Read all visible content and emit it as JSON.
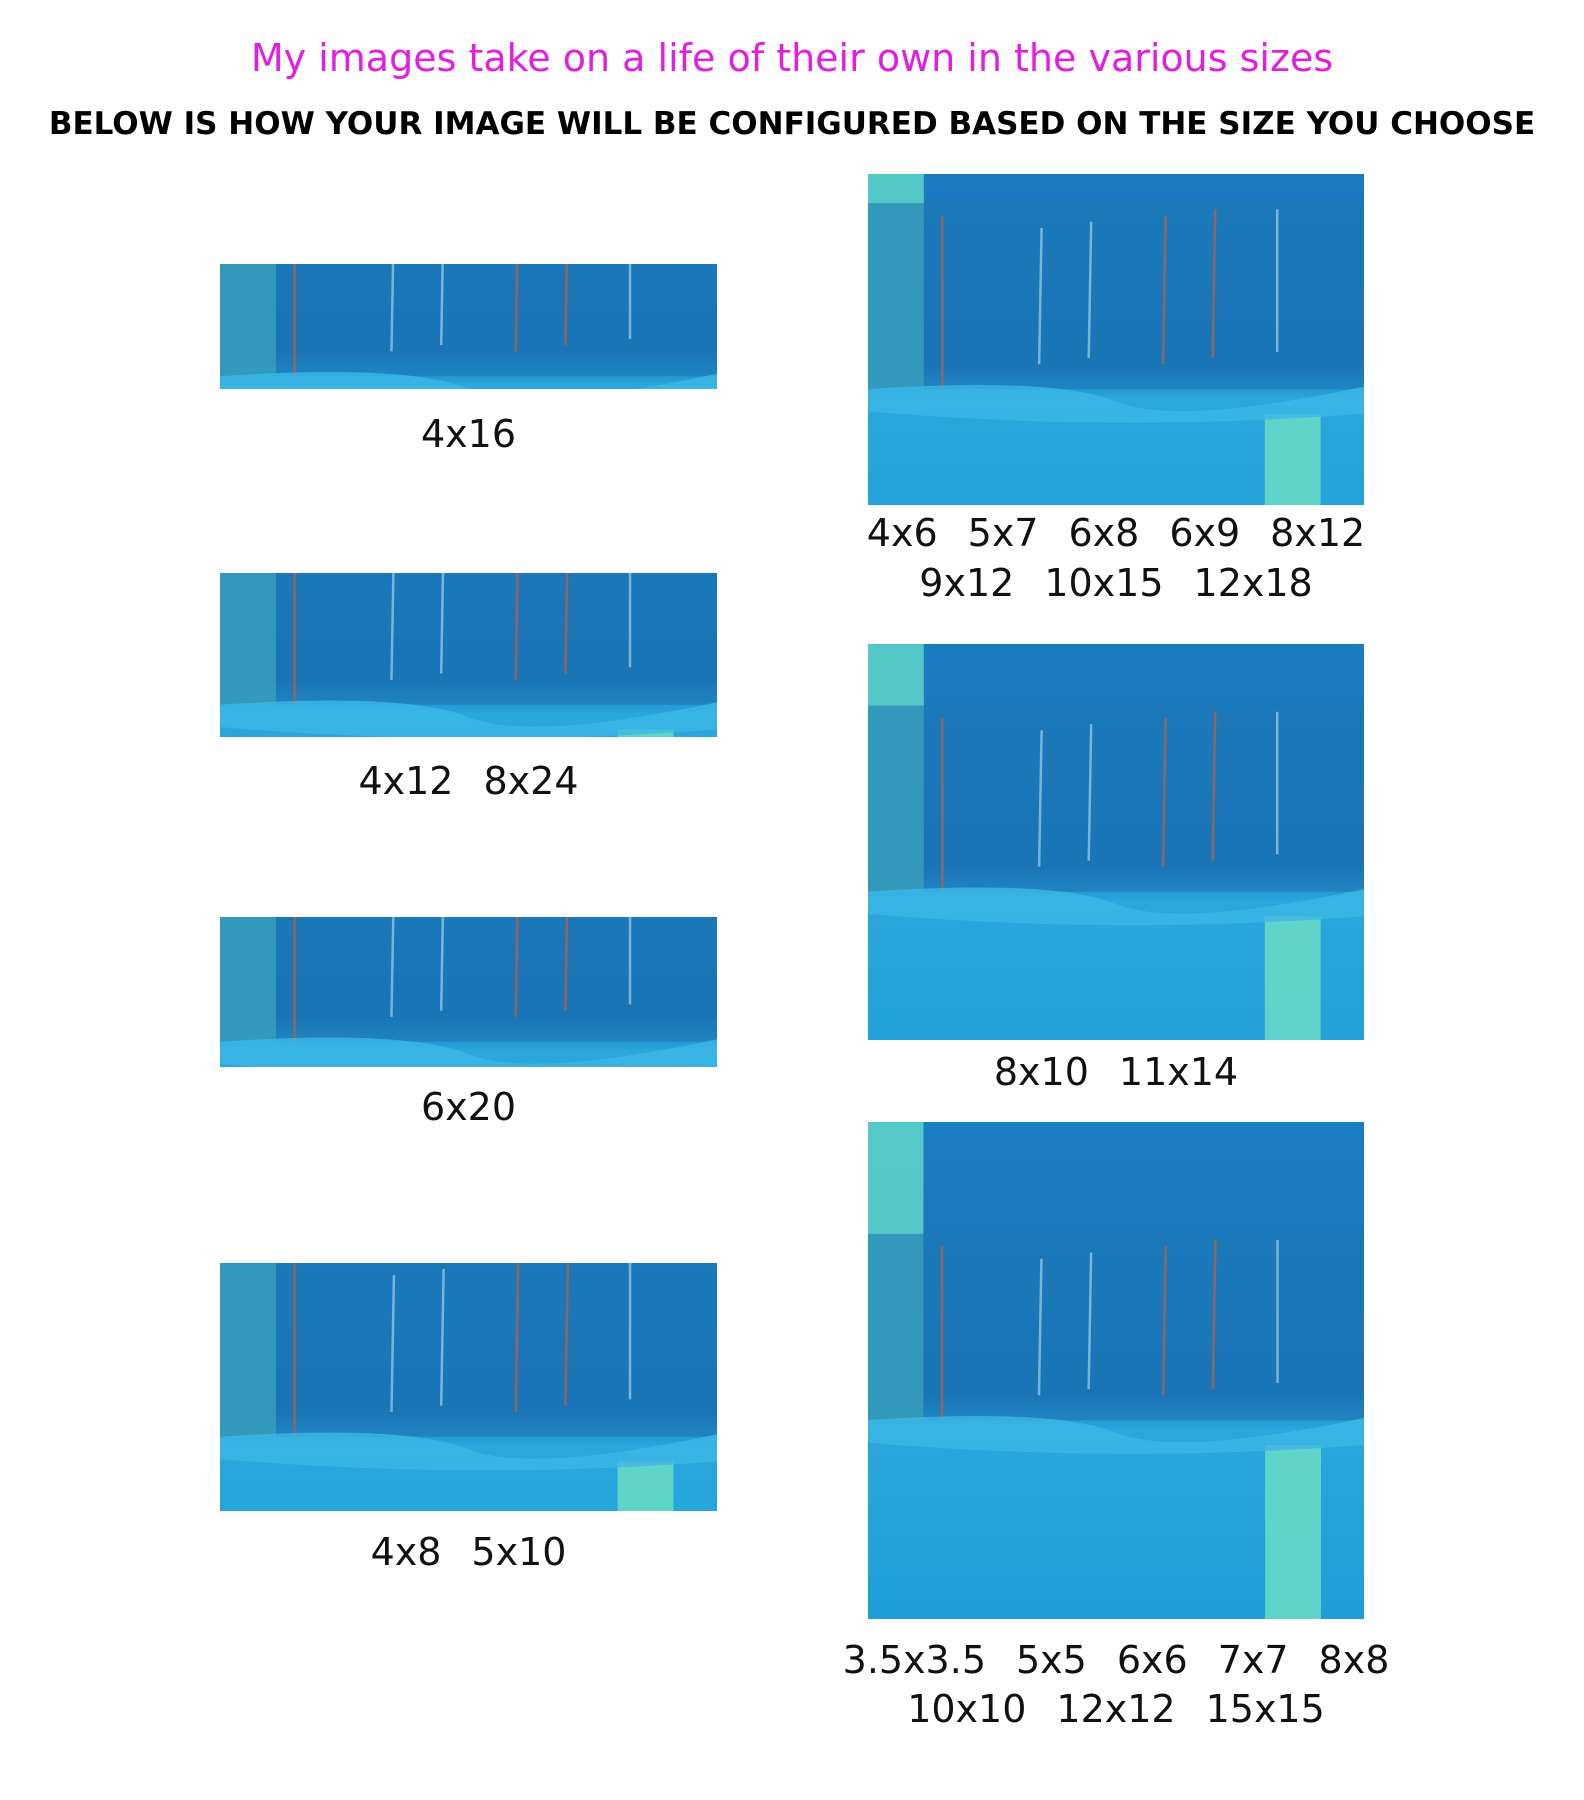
{
  "header": {
    "title": "My images take on a life of their own in the various sizes",
    "subtitle": "BELOW IS HOW YOUR IMAGE WILL BE CONFIGURED BASED ON THE SIZE YOU CHOOSE"
  },
  "panels": [
    {
      "lines": [
        [
          "4x16"
        ]
      ]
    },
    {
      "lines": [
        [
          "4x12",
          "8x24"
        ]
      ]
    },
    {
      "lines": [
        [
          "6x20"
        ]
      ]
    },
    {
      "lines": [
        [
          "4x8",
          "5x10"
        ]
      ]
    },
    {
      "lines": [
        [
          "4x6",
          "5x7",
          "6x8",
          "6x9",
          "8x12"
        ],
        [
          "9x12",
          "10x15",
          "12x18"
        ]
      ]
    },
    {
      "lines": [
        [
          "8x10",
          "11x14"
        ]
      ]
    },
    {
      "lines": [
        [
          "3.5x3.5",
          "5x5",
          "6x6",
          "7x7",
          "8x8"
        ],
        [
          "10x10",
          "12x12",
          "15x15"
        ]
      ]
    }
  ]
}
